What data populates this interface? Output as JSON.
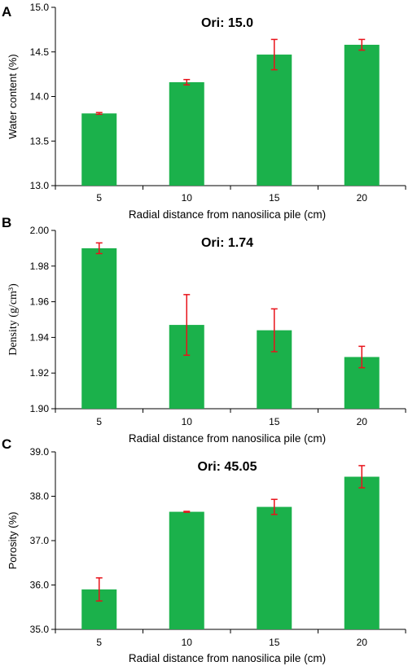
{
  "colors": {
    "bar": "#1bb14b",
    "error": "#e8131b",
    "axis": "#000000"
  },
  "chart_data": [
    {
      "type": "bar",
      "panel": "A",
      "annotation": "Ori: 15.0",
      "categories": [
        "5",
        "10",
        "15",
        "20"
      ],
      "values": [
        13.81,
        14.16,
        14.47,
        14.58
      ],
      "errors": [
        0.01,
        0.03,
        0.17,
        0.06
      ],
      "xlabel": "Radial distance from nanosilica pile (cm)",
      "ylabel": "Water content (%)",
      "ylim": [
        13.0,
        15.0
      ],
      "yticks": [
        "13.0",
        "13.5",
        "14.0",
        "14.5",
        "15.0"
      ],
      "ytick_values": [
        13.0,
        13.5,
        14.0,
        14.5,
        15.0
      ],
      "grid": false,
      "legend": "none"
    },
    {
      "type": "bar",
      "panel": "B",
      "annotation": "Ori: 1.74",
      "categories": [
        "5",
        "10",
        "15",
        "20"
      ],
      "values": [
        1.99,
        1.947,
        1.944,
        1.929
      ],
      "errors": [
        0.003,
        0.017,
        0.012,
        0.006
      ],
      "xlabel": "Radial distance from nanosilica pile (cm)",
      "ylabel": "Density  (g/cm³)",
      "ylim": [
        1.9,
        2.0
      ],
      "yticks": [
        "1.90",
        "1.92",
        "1.94",
        "1.96",
        "1.98",
        "2.00"
      ],
      "ytick_values": [
        1.9,
        1.92,
        1.94,
        1.96,
        1.98,
        2.0
      ],
      "grid": false,
      "legend": "none"
    },
    {
      "type": "bar",
      "panel": "C",
      "annotation": "Ori: 45.05",
      "categories": [
        "5",
        "10",
        "15",
        "20"
      ],
      "values": [
        35.9,
        37.65,
        37.76,
        38.44
      ],
      "errors": [
        0.26,
        0.01,
        0.17,
        0.25
      ],
      "xlabel": "Radial distance from nanosilica pile (cm)",
      "ylabel": "Porosity (%)",
      "ylim": [
        35.0,
        39.0
      ],
      "yticks": [
        "35.0",
        "36.0",
        "37.0",
        "38.0",
        "39.0"
      ],
      "ytick_values": [
        35.0,
        36.0,
        37.0,
        38.0,
        39.0
      ],
      "grid": false,
      "legend": "none"
    }
  ]
}
